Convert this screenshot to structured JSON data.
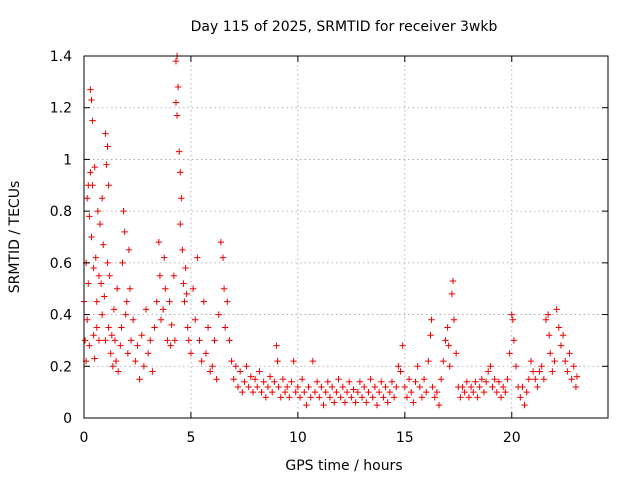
{
  "chart_data": {
    "type": "scatter",
    "title": "Day 115 of 2025, SRMTID for receiver 3wkb",
    "xlabel": "GPS time / hours",
    "ylabel": "SRMTID / TECUs",
    "xlim": [
      0,
      24.5
    ],
    "ylim": [
      0,
      1.4
    ],
    "xticks": [
      0,
      5,
      10,
      15,
      20
    ],
    "xtick_labels": [
      "0",
      "5",
      "10",
      "15",
      "20"
    ],
    "yticks": [
      0,
      0.2,
      0.4,
      0.6,
      0.8,
      1,
      1.2,
      1.4
    ],
    "ytick_labels": [
      "0",
      "0.2",
      "0.4",
      "0.6",
      "0.8",
      "1",
      "1.2",
      "1.4"
    ],
    "grid": true,
    "marker": "+",
    "marker_color": "#ee0000",
    "series": [
      {
        "name": "SRMTID",
        "points": [
          [
            0.0,
            0.45
          ],
          [
            0.05,
            0.3
          ],
          [
            0.1,
            0.6
          ],
          [
            0.1,
            0.22
          ],
          [
            0.15,
            0.85
          ],
          [
            0.15,
            0.38
          ],
          [
            0.2,
            0.9
          ],
          [
            0.2,
            0.52
          ],
          [
            0.25,
            0.78
          ],
          [
            0.25,
            0.28
          ],
          [
            0.3,
            1.27
          ],
          [
            0.3,
            0.95
          ],
          [
            0.35,
            1.23
          ],
          [
            0.35,
            0.7
          ],
          [
            0.4,
            1.15
          ],
          [
            0.4,
            0.9
          ],
          [
            0.45,
            0.58
          ],
          [
            0.45,
            0.32
          ],
          [
            0.5,
            0.97
          ],
          [
            0.5,
            0.23
          ],
          [
            0.55,
            0.62
          ],
          [
            0.6,
            0.45
          ],
          [
            0.6,
            0.35
          ],
          [
            0.65,
            0.8
          ],
          [
            0.7,
            0.55
          ],
          [
            0.7,
            0.3
          ],
          [
            0.75,
            0.75
          ],
          [
            0.8,
            0.52
          ],
          [
            0.85,
            0.85
          ],
          [
            0.85,
            0.4
          ],
          [
            0.9,
            0.67
          ],
          [
            0.95,
            0.47
          ],
          [
            1.0,
            1.1
          ],
          [
            1.0,
            0.3
          ],
          [
            1.05,
            0.98
          ],
          [
            1.1,
            1.05
          ],
          [
            1.1,
            0.6
          ],
          [
            1.15,
            0.9
          ],
          [
            1.15,
            0.35
          ],
          [
            1.2,
            0.55
          ],
          [
            1.25,
            0.25
          ],
          [
            1.3,
            0.32
          ],
          [
            1.35,
            0.2
          ],
          [
            1.4,
            0.42
          ],
          [
            1.45,
            0.3
          ],
          [
            1.5,
            0.22
          ],
          [
            1.55,
            0.5
          ],
          [
            1.6,
            0.18
          ],
          [
            1.7,
            0.28
          ],
          [
            1.75,
            0.35
          ],
          [
            1.8,
            0.6
          ],
          [
            1.85,
            0.8
          ],
          [
            1.9,
            0.72
          ],
          [
            1.95,
            0.4
          ],
          [
            2.0,
            0.45
          ],
          [
            2.05,
            0.25
          ],
          [
            2.1,
            0.65
          ],
          [
            2.15,
            0.5
          ],
          [
            2.2,
            0.3
          ],
          [
            2.3,
            0.38
          ],
          [
            2.4,
            0.22
          ],
          [
            2.5,
            0.28
          ],
          [
            2.6,
            0.15
          ],
          [
            2.7,
            0.32
          ],
          [
            2.8,
            0.2
          ],
          [
            2.9,
            0.42
          ],
          [
            3.0,
            0.25
          ],
          [
            3.1,
            0.3
          ],
          [
            3.2,
            0.18
          ],
          [
            3.3,
            0.35
          ],
          [
            3.4,
            0.45
          ],
          [
            3.5,
            0.68
          ],
          [
            3.55,
            0.55
          ],
          [
            3.6,
            0.38
          ],
          [
            3.7,
            0.42
          ],
          [
            3.75,
            0.62
          ],
          [
            3.8,
            0.5
          ],
          [
            3.9,
            0.3
          ],
          [
            4.0,
            0.45
          ],
          [
            4.05,
            0.28
          ],
          [
            4.1,
            0.36
          ],
          [
            4.2,
            0.55
          ],
          [
            4.25,
            0.3
          ],
          [
            4.3,
            1.38
          ],
          [
            4.3,
            1.22
          ],
          [
            4.35,
            1.4
          ],
          [
            4.35,
            1.17
          ],
          [
            4.4,
            1.28
          ],
          [
            4.45,
            1.03
          ],
          [
            4.5,
            0.95
          ],
          [
            4.5,
            0.75
          ],
          [
            4.55,
            0.85
          ],
          [
            4.6,
            0.65
          ],
          [
            4.65,
            0.52
          ],
          [
            4.7,
            0.45
          ],
          [
            4.75,
            0.58
          ],
          [
            4.8,
            0.48
          ],
          [
            4.85,
            0.35
          ],
          [
            4.9,
            0.3
          ],
          [
            5.0,
            0.25
          ],
          [
            5.1,
            0.5
          ],
          [
            5.2,
            0.38
          ],
          [
            5.3,
            0.62
          ],
          [
            5.4,
            0.3
          ],
          [
            5.5,
            0.22
          ],
          [
            5.6,
            0.45
          ],
          [
            5.7,
            0.25
          ],
          [
            5.8,
            0.35
          ],
          [
            5.9,
            0.18
          ],
          [
            6.0,
            0.2
          ],
          [
            6.1,
            0.3
          ],
          [
            6.2,
            0.15
          ],
          [
            6.3,
            0.4
          ],
          [
            6.4,
            0.68
          ],
          [
            6.5,
            0.62
          ],
          [
            6.55,
            0.5
          ],
          [
            6.6,
            0.35
          ],
          [
            6.7,
            0.45
          ],
          [
            6.8,
            0.3
          ],
          [
            6.9,
            0.22
          ],
          [
            7.0,
            0.15
          ],
          [
            7.1,
            0.2
          ],
          [
            7.2,
            0.12
          ],
          [
            7.3,
            0.18
          ],
          [
            7.4,
            0.1
          ],
          [
            7.5,
            0.14
          ],
          [
            7.6,
            0.2
          ],
          [
            7.7,
            0.12
          ],
          [
            7.8,
            0.16
          ],
          [
            7.9,
            0.1
          ],
          [
            8.0,
            0.15
          ],
          [
            8.1,
            0.12
          ],
          [
            8.2,
            0.18
          ],
          [
            8.3,
            0.1
          ],
          [
            8.4,
            0.14
          ],
          [
            8.5,
            0.08
          ],
          [
            8.6,
            0.12
          ],
          [
            8.7,
            0.16
          ],
          [
            8.8,
            0.1
          ],
          [
            8.9,
            0.14
          ],
          [
            9.0,
            0.28
          ],
          [
            9.05,
            0.22
          ],
          [
            9.1,
            0.12
          ],
          [
            9.2,
            0.08
          ],
          [
            9.3,
            0.15
          ],
          [
            9.4,
            0.1
          ],
          [
            9.5,
            0.12
          ],
          [
            9.6,
            0.08
          ],
          [
            9.7,
            0.14
          ],
          [
            9.8,
            0.22
          ],
          [
            9.9,
            0.1
          ],
          [
            10.0,
            0.12
          ],
          [
            10.1,
            0.08
          ],
          [
            10.2,
            0.15
          ],
          [
            10.3,
            0.1
          ],
          [
            10.4,
            0.05
          ],
          [
            10.5,
            0.12
          ],
          [
            10.6,
            0.08
          ],
          [
            10.7,
            0.22
          ],
          [
            10.8,
            0.1
          ],
          [
            10.9,
            0.14
          ],
          [
            11.0,
            0.08
          ],
          [
            11.1,
            0.12
          ],
          [
            11.2,
            0.05
          ],
          [
            11.3,
            0.1
          ],
          [
            11.4,
            0.14
          ],
          [
            11.5,
            0.08
          ],
          [
            11.6,
            0.12
          ],
          [
            11.7,
            0.06
          ],
          [
            11.8,
            0.1
          ],
          [
            11.9,
            0.15
          ],
          [
            12.0,
            0.08
          ],
          [
            12.1,
            0.12
          ],
          [
            12.2,
            0.06
          ],
          [
            12.3,
            0.1
          ],
          [
            12.4,
            0.14
          ],
          [
            12.5,
            0.08
          ],
          [
            12.6,
            0.11
          ],
          [
            12.7,
            0.06
          ],
          [
            12.8,
            0.1
          ],
          [
            12.9,
            0.14
          ],
          [
            13.0,
            0.08
          ],
          [
            13.1,
            0.12
          ],
          [
            13.2,
            0.06
          ],
          [
            13.3,
            0.1
          ],
          [
            13.4,
            0.15
          ],
          [
            13.5,
            0.08
          ],
          [
            13.6,
            0.12
          ],
          [
            13.7,
            0.05
          ],
          [
            13.8,
            0.1
          ],
          [
            13.9,
            0.14
          ],
          [
            14.0,
            0.08
          ],
          [
            14.1,
            0.12
          ],
          [
            14.2,
            0.06
          ],
          [
            14.3,
            0.1
          ],
          [
            14.4,
            0.14
          ],
          [
            14.5,
            0.08
          ],
          [
            14.6,
            0.12
          ],
          [
            14.7,
            0.2
          ],
          [
            14.8,
            0.18
          ],
          [
            14.9,
            0.28
          ],
          [
            15.0,
            0.12
          ],
          [
            15.1,
            0.08
          ],
          [
            15.2,
            0.15
          ],
          [
            15.3,
            0.1
          ],
          [
            15.4,
            0.06
          ],
          [
            15.5,
            0.14
          ],
          [
            15.6,
            0.2
          ],
          [
            15.7,
            0.12
          ],
          [
            15.8,
            0.08
          ],
          [
            15.9,
            0.15
          ],
          [
            16.0,
            0.1
          ],
          [
            16.1,
            0.22
          ],
          [
            16.2,
            0.32
          ],
          [
            16.25,
            0.38
          ],
          [
            16.3,
            0.12
          ],
          [
            16.4,
            0.08
          ],
          [
            16.5,
            0.1
          ],
          [
            16.6,
            0.05
          ],
          [
            16.7,
            0.15
          ],
          [
            16.8,
            0.22
          ],
          [
            16.9,
            0.3
          ],
          [
            17.0,
            0.35
          ],
          [
            17.05,
            0.28
          ],
          [
            17.1,
            0.2
          ],
          [
            17.2,
            0.48
          ],
          [
            17.25,
            0.53
          ],
          [
            17.3,
            0.38
          ],
          [
            17.4,
            0.25
          ],
          [
            17.5,
            0.12
          ],
          [
            17.6,
            0.08
          ],
          [
            17.7,
            0.12
          ],
          [
            17.8,
            0.1
          ],
          [
            17.9,
            0.14
          ],
          [
            18.0,
            0.08
          ],
          [
            18.1,
            0.12
          ],
          [
            18.2,
            0.1
          ],
          [
            18.3,
            0.14
          ],
          [
            18.4,
            0.08
          ],
          [
            18.5,
            0.12
          ],
          [
            18.6,
            0.15
          ],
          [
            18.7,
            0.1
          ],
          [
            18.8,
            0.14
          ],
          [
            18.9,
            0.18
          ],
          [
            19.0,
            0.2
          ],
          [
            19.1,
            0.12
          ],
          [
            19.2,
            0.15
          ],
          [
            19.3,
            0.1
          ],
          [
            19.4,
            0.14
          ],
          [
            19.5,
            0.08
          ],
          [
            19.6,
            0.12
          ],
          [
            19.7,
            0.1
          ],
          [
            19.8,
            0.15
          ],
          [
            19.9,
            0.25
          ],
          [
            20.0,
            0.4
          ],
          [
            20.05,
            0.38
          ],
          [
            20.1,
            0.3
          ],
          [
            20.2,
            0.2
          ],
          [
            20.3,
            0.12
          ],
          [
            20.4,
            0.08
          ],
          [
            20.5,
            0.12
          ],
          [
            20.6,
            0.05
          ],
          [
            20.7,
            0.1
          ],
          [
            20.8,
            0.15
          ],
          [
            20.9,
            0.22
          ],
          [
            21.0,
            0.18
          ],
          [
            21.1,
            0.15
          ],
          [
            21.2,
            0.12
          ],
          [
            21.3,
            0.18
          ],
          [
            21.4,
            0.2
          ],
          [
            21.5,
            0.15
          ],
          [
            21.6,
            0.38
          ],
          [
            21.7,
            0.4
          ],
          [
            21.75,
            0.32
          ],
          [
            21.8,
            0.25
          ],
          [
            21.9,
            0.18
          ],
          [
            22.0,
            0.22
          ],
          [
            22.1,
            0.42
          ],
          [
            22.2,
            0.35
          ],
          [
            22.3,
            0.28
          ],
          [
            22.4,
            0.32
          ],
          [
            22.5,
            0.22
          ],
          [
            22.6,
            0.18
          ],
          [
            22.7,
            0.25
          ],
          [
            22.8,
            0.15
          ],
          [
            22.9,
            0.2
          ],
          [
            23.0,
            0.12
          ],
          [
            23.05,
            0.16
          ]
        ]
      }
    ]
  }
}
